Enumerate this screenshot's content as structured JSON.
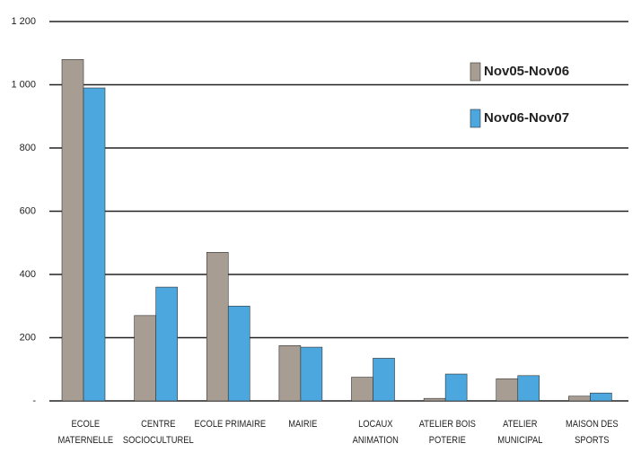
{
  "chart_data": {
    "type": "bar",
    "categories": [
      "ECOLE\nMATERNELLE",
      "CENTRE\nSOCIOCULTUREL",
      "ECOLE PRIMAIRE",
      "MAIRIE",
      "LOCAUX\nANIMATION",
      "ATELIER BOIS\nPOTERIE",
      "ATELIER\nMUNICIPAL",
      "MAISON DES\nSPORTS"
    ],
    "series": [
      {
        "name": "Nov05-Nov06",
        "color": "#a79d93",
        "values": [
          1080,
          270,
          470,
          175,
          75,
          8,
          70,
          15
        ]
      },
      {
        "name": "Nov06-Nov07",
        "color": "#4ba7dd",
        "values": [
          990,
          360,
          300,
          170,
          135,
          85,
          80,
          25
        ]
      }
    ],
    "ylim": [
      0,
      1200
    ],
    "yticks": [
      {
        "value": 0,
        "label": "-"
      },
      200,
      400,
      600,
      800,
      {
        "value": 1000,
        "label": "1 000"
      },
      {
        "value": 1200,
        "label": "1 200"
      }
    ],
    "grid": true,
    "legend": "top-right"
  }
}
